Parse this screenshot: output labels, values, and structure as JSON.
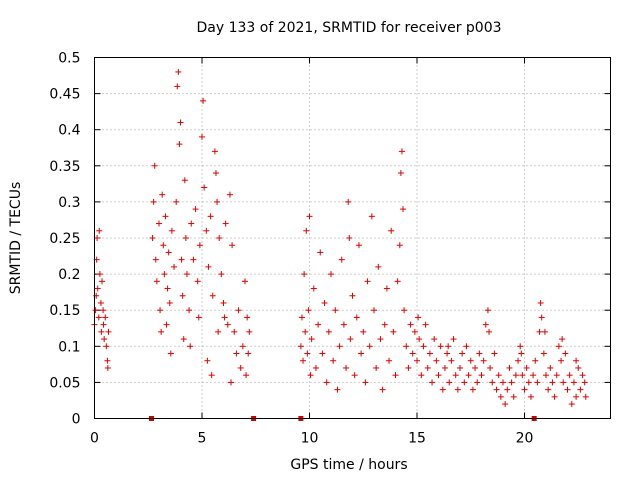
{
  "chart_data": {
    "type": "scatter",
    "title": "Day 133 of 2021, SRMTID for receiver p003",
    "xlabel": "GPS time / hours",
    "ylabel": "SRMTID / TECUs",
    "xlim": [
      0,
      24
    ],
    "ylim": [
      0,
      0.5
    ],
    "xticks": [
      0,
      5,
      10,
      15,
      20
    ],
    "xtick_labels": [
      "0",
      "5",
      "10",
      "15",
      "20"
    ],
    "yticks": [
      0,
      0.05,
      0.1,
      0.15,
      0.2,
      0.25,
      0.3,
      0.35,
      0.4,
      0.45,
      0.5
    ],
    "ytick_labels": [
      "0",
      "0.05",
      "0.1",
      "0.15",
      "0.2",
      "0.25",
      "0.3",
      "0.35",
      "0.4",
      "0.45",
      "0.5"
    ],
    "grid": true,
    "marker": "+",
    "color": "#e00000",
    "baseline_markers_x": [
      2.65,
      7.4,
      9.6,
      20.45
    ],
    "series": [
      {
        "name": "SRMTID",
        "points": [
          [
            0.05,
            0.15
          ],
          [
            0.1,
            0.22
          ],
          [
            0.12,
            0.25
          ],
          [
            0.15,
            0.18
          ],
          [
            0.2,
            0.14
          ],
          [
            0.22,
            0.26
          ],
          [
            0.25,
            0.2
          ],
          [
            0.3,
            0.16
          ],
          [
            0.32,
            0.12
          ],
          [
            0.35,
            0.19
          ],
          [
            0.4,
            0.15
          ],
          [
            0.42,
            0.13
          ],
          [
            0.45,
            0.11
          ],
          [
            0.5,
            0.14
          ],
          [
            0.55,
            0.1
          ],
          [
            0.6,
            0.08
          ],
          [
            0.62,
            0.07
          ],
          [
            0.65,
            0.12
          ],
          [
            0.0,
            0.13
          ],
          [
            0.08,
            0.17
          ],
          [
            2.7,
            0.25
          ],
          [
            2.75,
            0.3
          ],
          [
            2.8,
            0.35
          ],
          [
            2.85,
            0.22
          ],
          [
            2.9,
            0.19
          ],
          [
            3.0,
            0.27
          ],
          [
            3.05,
            0.15
          ],
          [
            3.1,
            0.12
          ],
          [
            3.2,
            0.24
          ],
          [
            3.25,
            0.2
          ],
          [
            3.3,
            0.28
          ],
          [
            3.4,
            0.18
          ],
          [
            3.45,
            0.23
          ],
          [
            3.5,
            0.16
          ],
          [
            3.6,
            0.26
          ],
          [
            3.7,
            0.21
          ],
          [
            3.8,
            0.3
          ],
          [
            3.85,
            0.46
          ],
          [
            3.9,
            0.48
          ],
          [
            3.95,
            0.38
          ],
          [
            4.0,
            0.41
          ],
          [
            4.05,
            0.22
          ],
          [
            4.1,
            0.17
          ],
          [
            4.2,
            0.33
          ],
          [
            4.25,
            0.25
          ],
          [
            4.3,
            0.2
          ],
          [
            4.4,
            0.15
          ],
          [
            4.5,
            0.27
          ],
          [
            4.6,
            0.22
          ],
          [
            4.7,
            0.29
          ],
          [
            4.8,
            0.19
          ],
          [
            4.9,
            0.24
          ],
          [
            5.0,
            0.39
          ],
          [
            5.05,
            0.44
          ],
          [
            5.1,
            0.32
          ],
          [
            5.2,
            0.26
          ],
          [
            5.3,
            0.21
          ],
          [
            5.4,
            0.28
          ],
          [
            5.5,
            0.17
          ],
          [
            5.6,
            0.37
          ],
          [
            5.65,
            0.34
          ],
          [
            5.7,
            0.3
          ],
          [
            5.8,
            0.25
          ],
          [
            5.9,
            0.2
          ],
          [
            6.0,
            0.16
          ],
          [
            6.1,
            0.27
          ],
          [
            6.2,
            0.13
          ],
          [
            6.3,
            0.31
          ],
          [
            6.4,
            0.24
          ],
          [
            6.5,
            0.12
          ],
          [
            6.6,
            0.09
          ],
          [
            6.7,
            0.15
          ],
          [
            6.8,
            0.07
          ],
          [
            6.9,
            0.1
          ],
          [
            7.0,
            0.19
          ],
          [
            7.05,
            0.06
          ],
          [
            7.1,
            0.14
          ],
          [
            7.15,
            0.09
          ],
          [
            7.2,
            0.12
          ],
          [
            3.15,
            0.31
          ],
          [
            3.55,
            0.09
          ],
          [
            4.15,
            0.11
          ],
          [
            4.45,
            0.1
          ],
          [
            5.25,
            0.08
          ],
          [
            5.45,
            0.06
          ],
          [
            6.05,
            0.14
          ],
          [
            6.35,
            0.05
          ],
          [
            3.35,
            0.13
          ],
          [
            4.85,
            0.14
          ],
          [
            5.75,
            0.12
          ],
          [
            9.6,
            0.1
          ],
          [
            9.65,
            0.14
          ],
          [
            9.7,
            0.08
          ],
          [
            9.75,
            0.2
          ],
          [
            9.8,
            0.12
          ],
          [
            9.85,
            0.26
          ],
          [
            9.9,
            0.09
          ],
          [
            9.95,
            0.15
          ],
          [
            10.0,
            0.28
          ],
          [
            10.05,
            0.06
          ],
          [
            10.1,
            0.11
          ],
          [
            10.2,
            0.18
          ],
          [
            10.3,
            0.07
          ],
          [
            10.4,
            0.13
          ],
          [
            10.5,
            0.23
          ],
          [
            10.6,
            0.09
          ],
          [
            10.7,
            0.16
          ],
          [
            10.8,
            0.05
          ],
          [
            10.9,
            0.12
          ],
          [
            11.0,
            0.2
          ],
          [
            11.1,
            0.08
          ],
          [
            11.2,
            0.15
          ],
          [
            11.3,
            0.04
          ],
          [
            11.4,
            0.1
          ],
          [
            11.5,
            0.22
          ],
          [
            11.6,
            0.13
          ],
          [
            11.7,
            0.07
          ],
          [
            11.8,
            0.3
          ],
          [
            11.85,
            0.25
          ],
          [
            11.9,
            0.11
          ],
          [
            12.0,
            0.17
          ],
          [
            12.1,
            0.06
          ],
          [
            12.2,
            0.14
          ],
          [
            12.3,
            0.24
          ],
          [
            12.4,
            0.09
          ],
          [
            12.5,
            0.12
          ],
          [
            12.6,
            0.05
          ],
          [
            12.7,
            0.19
          ],
          [
            12.8,
            0.1
          ],
          [
            12.9,
            0.28
          ],
          [
            13.0,
            0.15
          ],
          [
            13.1,
            0.07
          ],
          [
            13.2,
            0.21
          ],
          [
            13.3,
            0.11
          ],
          [
            13.4,
            0.04
          ],
          [
            13.5,
            0.13
          ],
          [
            13.6,
            0.18
          ],
          [
            13.7,
            0.08
          ],
          [
            13.8,
            0.26
          ],
          [
            13.9,
            0.12
          ],
          [
            14.0,
            0.06
          ],
          [
            14.1,
            0.19
          ],
          [
            14.2,
            0.24
          ],
          [
            14.25,
            0.34
          ],
          [
            14.3,
            0.37
          ],
          [
            14.35,
            0.29
          ],
          [
            14.4,
            0.15
          ],
          [
            14.5,
            0.1
          ],
          [
            14.6,
            0.07
          ],
          [
            14.7,
            0.13
          ],
          [
            14.8,
            0.09
          ],
          [
            14.9,
            0.12
          ],
          [
            15.0,
            0.08
          ],
          [
            15.1,
            0.11
          ],
          [
            15.2,
            0.06
          ],
          [
            15.3,
            0.1
          ],
          [
            15.4,
            0.13
          ],
          [
            15.5,
            0.07
          ],
          [
            15.6,
            0.09
          ],
          [
            15.7,
            0.05
          ],
          [
            15.8,
            0.11
          ],
          [
            15.9,
            0.08
          ],
          [
            16.0,
            0.06
          ],
          [
            16.1,
            0.1
          ],
          [
            16.2,
            0.04
          ],
          [
            16.3,
            0.07
          ],
          [
            16.4,
            0.09
          ],
          [
            16.5,
            0.05
          ],
          [
            16.6,
            0.08
          ],
          [
            16.7,
            0.11
          ],
          [
            16.8,
            0.06
          ],
          [
            16.9,
            0.04
          ],
          [
            17.0,
            0.07
          ],
          [
            17.1,
            0.09
          ],
          [
            17.2,
            0.05
          ],
          [
            17.3,
            0.1
          ],
          [
            17.4,
            0.06
          ],
          [
            17.5,
            0.08
          ],
          [
            17.6,
            0.04
          ],
          [
            17.7,
            0.07
          ],
          [
            17.8,
            0.05
          ],
          [
            17.9,
            0.09
          ],
          [
            18.0,
            0.06
          ],
          [
            18.1,
            0.08
          ],
          [
            18.2,
            0.13
          ],
          [
            18.3,
            0.15
          ],
          [
            18.4,
            0.07
          ],
          [
            18.5,
            0.05
          ],
          [
            18.6,
            0.09
          ],
          [
            18.7,
            0.04
          ],
          [
            18.8,
            0.06
          ],
          [
            18.9,
            0.03
          ],
          [
            19.0,
            0.05
          ],
          [
            19.1,
            0.02
          ],
          [
            19.2,
            0.04
          ],
          [
            19.3,
            0.07
          ],
          [
            19.4,
            0.05
          ],
          [
            19.5,
            0.03
          ],
          [
            19.6,
            0.06
          ],
          [
            19.7,
            0.08
          ],
          [
            19.8,
            0.1
          ],
          [
            19.9,
            0.06
          ],
          [
            20.0,
            0.04
          ],
          [
            20.1,
            0.07
          ],
          [
            20.2,
            0.05
          ],
          [
            20.3,
            0.03
          ],
          [
            20.4,
            0.06
          ],
          [
            20.5,
            0.08
          ],
          [
            20.6,
            0.05
          ],
          [
            20.7,
            0.12
          ],
          [
            20.75,
            0.16
          ],
          [
            20.8,
            0.14
          ],
          [
            20.9,
            0.09
          ],
          [
            21.0,
            0.06
          ],
          [
            21.1,
            0.04
          ],
          [
            21.2,
            0.07
          ],
          [
            21.3,
            0.05
          ],
          [
            21.4,
            0.03
          ],
          [
            21.5,
            0.06
          ],
          [
            21.6,
            0.1
          ],
          [
            21.7,
            0.08
          ],
          [
            21.8,
            0.05
          ],
          [
            21.9,
            0.09
          ],
          [
            22.0,
            0.04
          ],
          [
            22.1,
            0.06
          ],
          [
            22.2,
            0.02
          ],
          [
            22.3,
            0.05
          ],
          [
            22.4,
            0.03
          ],
          [
            22.5,
            0.07
          ],
          [
            22.6,
            0.04
          ],
          [
            22.7,
            0.06
          ],
          [
            22.8,
            0.05
          ],
          [
            22.85,
            0.03
          ],
          [
            22.4,
            0.08
          ],
          [
            21.75,
            0.11
          ],
          [
            20.95,
            0.12
          ],
          [
            19.85,
            0.09
          ],
          [
            18.35,
            0.12
          ],
          [
            16.45,
            0.1
          ],
          [
            15.05,
            0.14
          ]
        ]
      }
    ]
  }
}
